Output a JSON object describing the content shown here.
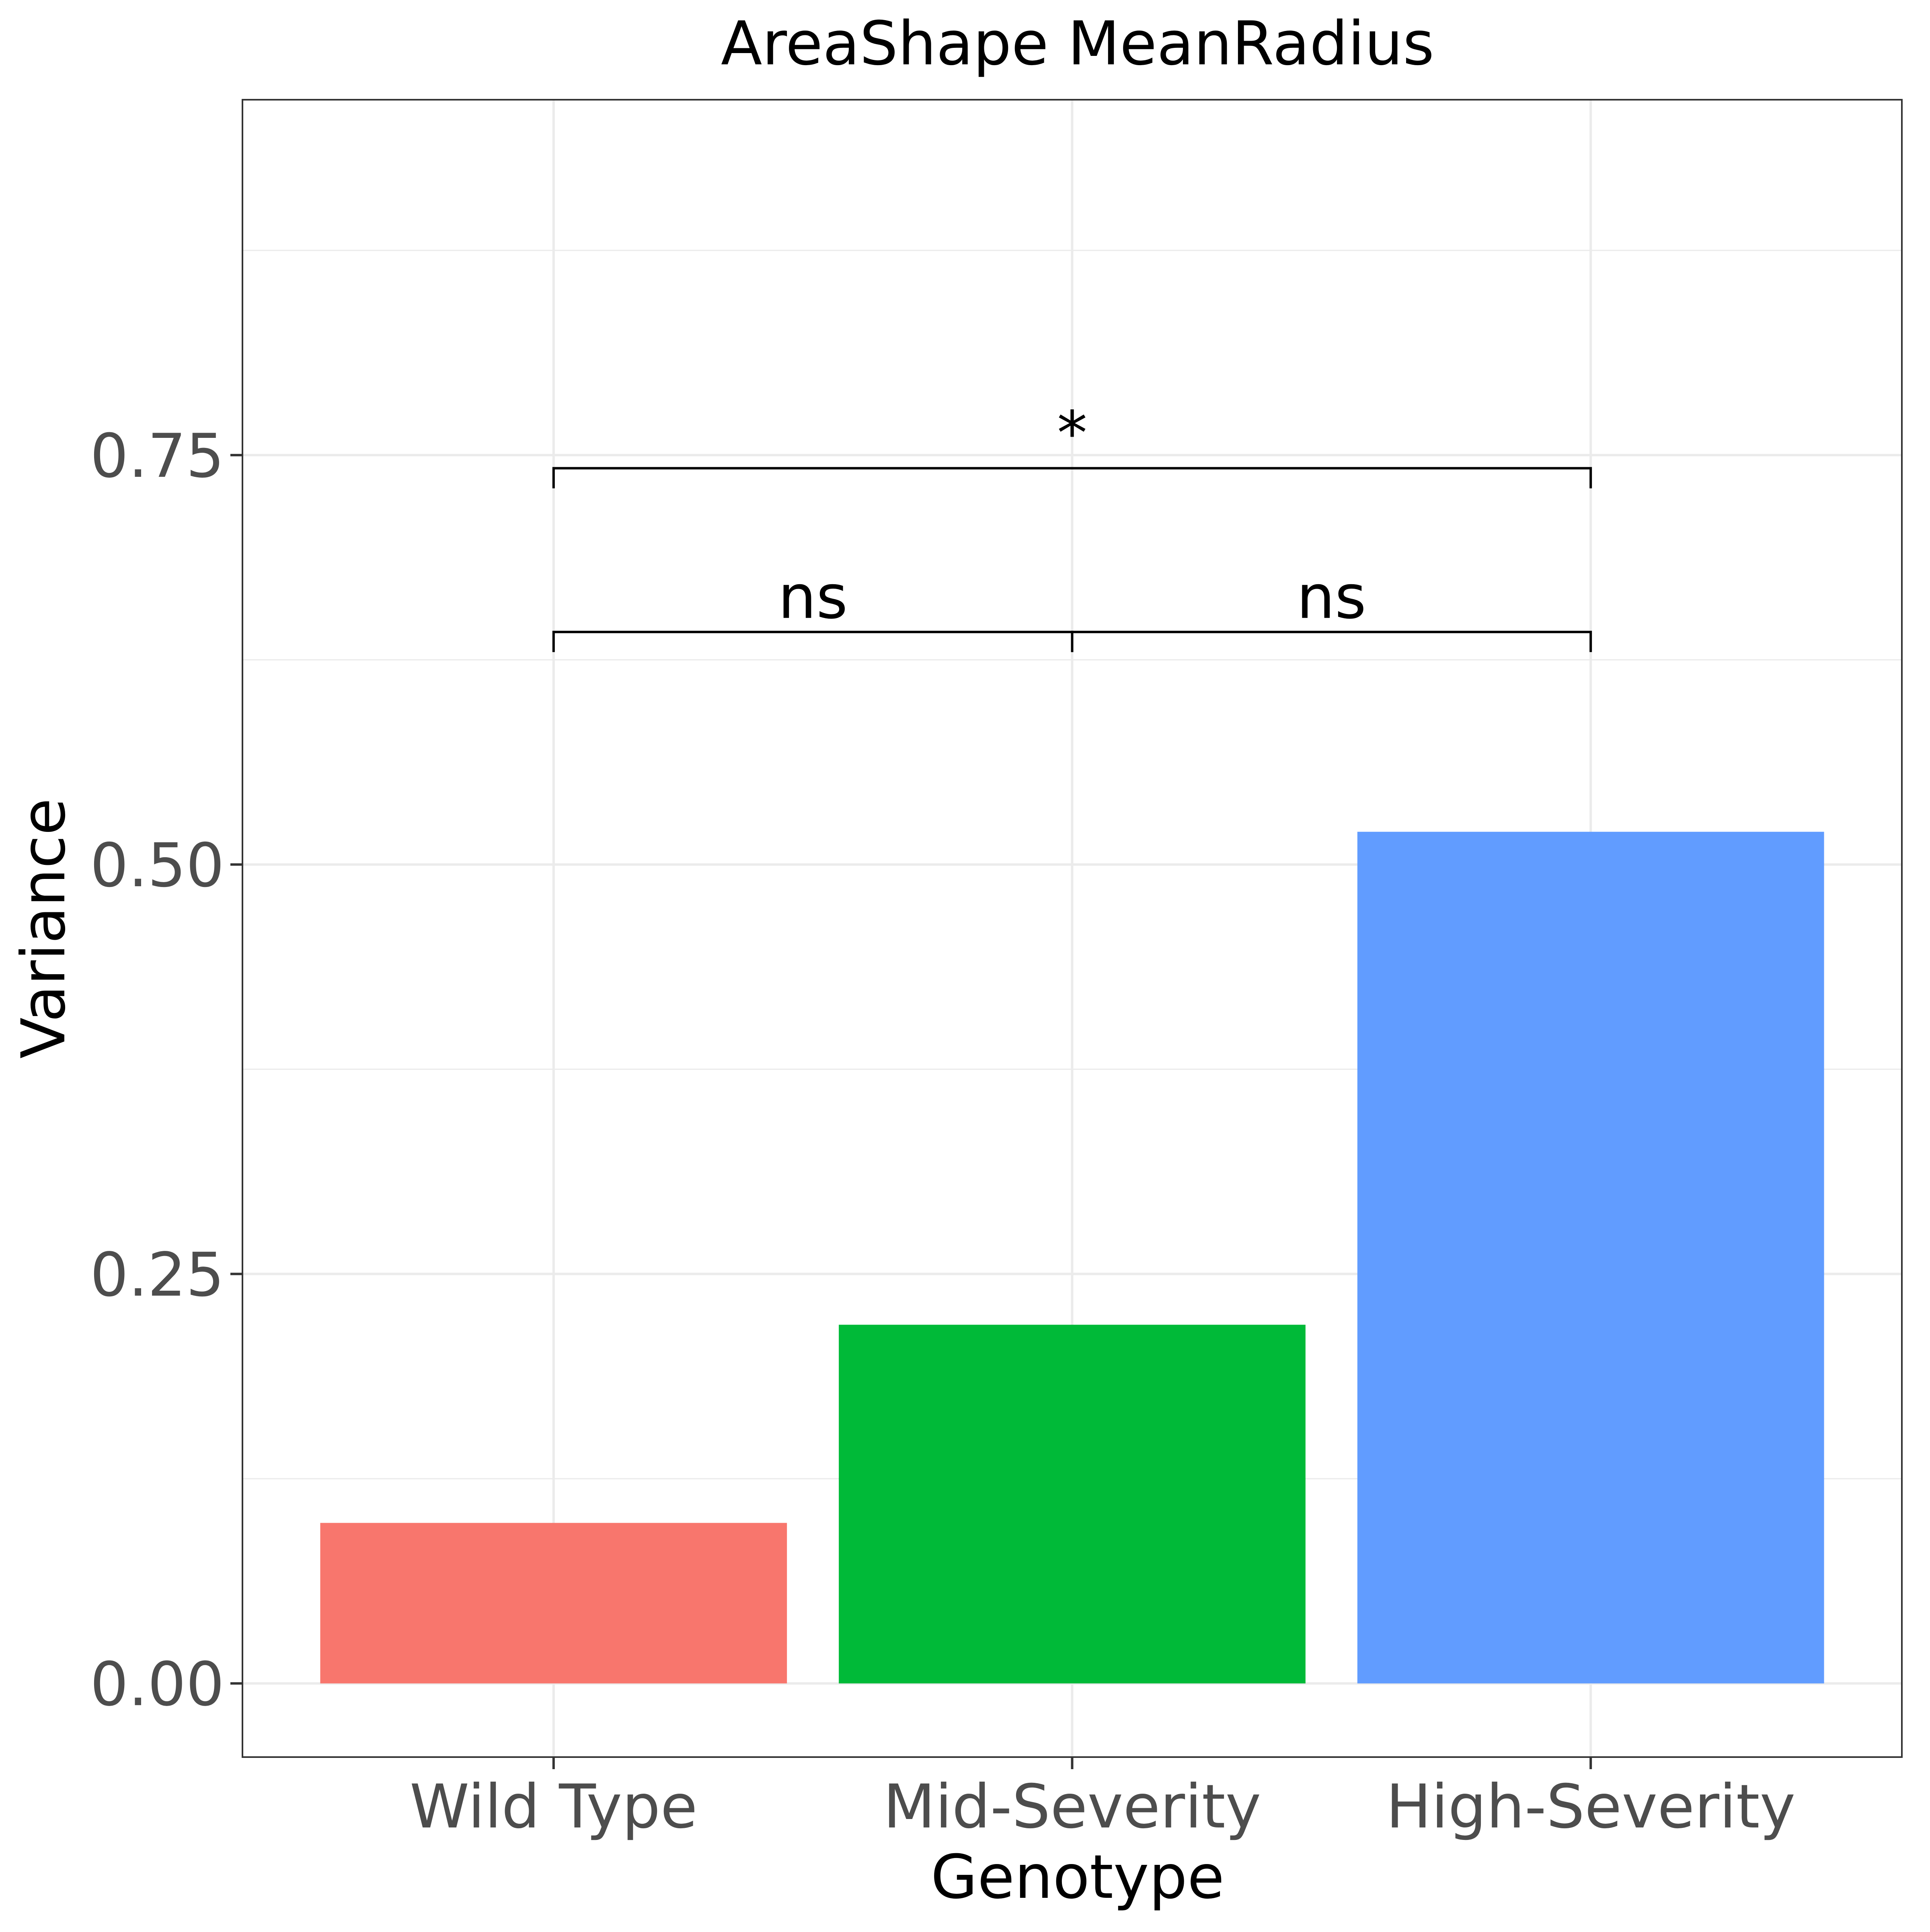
{
  "chart_data": {
    "type": "bar",
    "title": "AreaShape MeanRadius",
    "xlabel": "Genotype",
    "ylabel": "Variance",
    "categories": [
      "Wild Type",
      "Mid-Severity",
      "High-Severity"
    ],
    "values": [
      0.098,
      0.219,
      0.52
    ],
    "colors": [
      "#F8766D",
      "#00BA38",
      "#619CFF"
    ],
    "ylim": [
      -0.045,
      0.967
    ],
    "yticks": [
      0.0,
      0.25,
      0.5,
      0.75
    ],
    "ytick_labels": [
      "0.00",
      "0.25",
      "0.50",
      "0.75"
    ],
    "grid": true,
    "significance": [
      {
        "from": "Wild Type",
        "to": "Mid-Severity",
        "label": "ns",
        "level": 0.642
      },
      {
        "from": "Mid-Severity",
        "to": "High-Severity",
        "label": "ns",
        "level": 0.642
      },
      {
        "from": "Wild Type",
        "to": "High-Severity",
        "label": "*",
        "level": 0.742
      }
    ]
  }
}
